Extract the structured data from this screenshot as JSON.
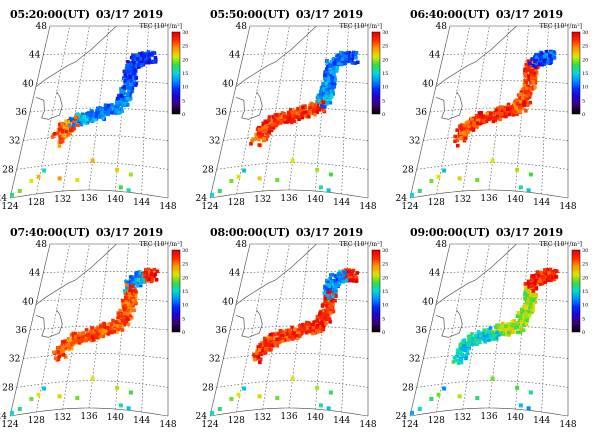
{
  "panels": [
    {
      "time": "05:20:00(UT)",
      "date": "03/17 2019",
      "stage": 0
    },
    {
      "time": "05:50:00(UT)",
      "date": "03/17 2019",
      "stage": 1
    },
    {
      "time": "06:40:00(UT)",
      "date": "03/17 2019",
      "stage": 2
    },
    {
      "time": "07:40:00(UT)",
      "date": "03/17 2019",
      "stage": 3
    },
    {
      "time": "08:00:00(UT)",
      "date": "03/17 2019",
      "stage": 4
    },
    {
      "time": "09:00:00(UT)",
      "date": "03/17 2019",
      "stage": 5
    }
  ],
  "colorbar": {
    "label_prefix": "TEC [10",
    "label_exp": "16",
    "label_suffix": "/m",
    "label_exp2": "2",
    "label_close": "]",
    "ticks": [
      "30",
      "25",
      "20",
      "15",
      "10",
      "5",
      "0"
    ]
  },
  "axes": {
    "lat_labels": [
      "48",
      "44",
      "40",
      "36",
      "32",
      "28",
      "24"
    ],
    "lon_labels": [
      "124",
      "128",
      "132",
      "136",
      "140",
      "144",
      "148"
    ]
  }
}
